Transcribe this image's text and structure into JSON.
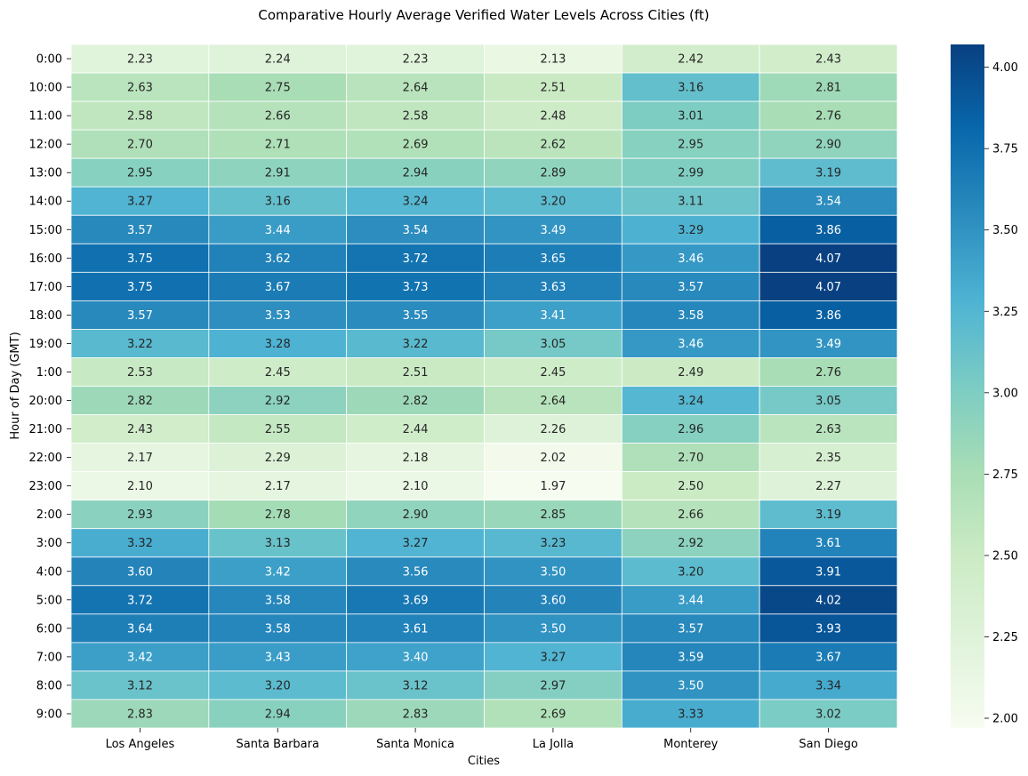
{
  "chart_data": {
    "type": "heatmap",
    "title": "Comparative Hourly Average Verified Water Levels Across Cities (ft)",
    "xlabel": "Cities",
    "ylabel": "Hour of Day (GMT)",
    "columns": [
      "Los Angeles",
      "Santa Barbara",
      "Santa Monica",
      "La Jolla",
      "Monterey",
      "San Diego"
    ],
    "rows": [
      "0:00",
      "10:00",
      "11:00",
      "12:00",
      "13:00",
      "14:00",
      "15:00",
      "16:00",
      "17:00",
      "18:00",
      "19:00",
      "1:00",
      "20:00",
      "21:00",
      "22:00",
      "23:00",
      "2:00",
      "3:00",
      "4:00",
      "5:00",
      "6:00",
      "7:00",
      "8:00",
      "9:00"
    ],
    "values": [
      [
        2.23,
        2.24,
        2.23,
        2.13,
        2.42,
        2.43
      ],
      [
        2.63,
        2.75,
        2.64,
        2.51,
        3.16,
        2.81
      ],
      [
        2.58,
        2.66,
        2.58,
        2.48,
        3.01,
        2.76
      ],
      [
        2.7,
        2.71,
        2.69,
        2.62,
        2.95,
        2.9
      ],
      [
        2.95,
        2.91,
        2.94,
        2.89,
        2.99,
        3.19
      ],
      [
        3.27,
        3.16,
        3.24,
        3.2,
        3.11,
        3.54
      ],
      [
        3.57,
        3.44,
        3.54,
        3.49,
        3.29,
        3.86
      ],
      [
        3.75,
        3.62,
        3.72,
        3.65,
        3.46,
        4.07
      ],
      [
        3.75,
        3.67,
        3.73,
        3.63,
        3.57,
        4.07
      ],
      [
        3.57,
        3.53,
        3.55,
        3.41,
        3.58,
        3.86
      ],
      [
        3.22,
        3.28,
        3.22,
        3.05,
        3.46,
        3.49
      ],
      [
        2.53,
        2.45,
        2.51,
        2.45,
        2.49,
        2.76
      ],
      [
        2.82,
        2.92,
        2.82,
        2.64,
        3.24,
        3.05
      ],
      [
        2.43,
        2.55,
        2.44,
        2.26,
        2.96,
        2.63
      ],
      [
        2.17,
        2.29,
        2.18,
        2.02,
        2.7,
        2.35
      ],
      [
        2.1,
        2.17,
        2.1,
        1.97,
        2.5,
        2.27
      ],
      [
        2.93,
        2.78,
        2.9,
        2.85,
        2.66,
        3.19
      ],
      [
        3.32,
        3.13,
        3.27,
        3.23,
        2.92,
        3.61
      ],
      [
        3.6,
        3.42,
        3.56,
        3.5,
        3.2,
        3.91
      ],
      [
        3.72,
        3.58,
        3.69,
        3.6,
        3.44,
        4.02
      ],
      [
        3.64,
        3.58,
        3.61,
        3.5,
        3.57,
        3.93
      ],
      [
        3.42,
        3.43,
        3.4,
        3.27,
        3.59,
        3.67
      ],
      [
        3.12,
        3.2,
        3.12,
        2.97,
        3.5,
        3.34
      ],
      [
        2.83,
        2.94,
        2.83,
        2.69,
        3.33,
        3.02
      ]
    ],
    "value_format": "0.00",
    "colormap": "GnBu",
    "vmin": 1.97,
    "vmax": 4.07,
    "colorbar_ticks": [
      "2.00",
      "2.25",
      "2.50",
      "2.75",
      "3.00",
      "3.25",
      "3.50",
      "3.75",
      "4.00"
    ],
    "colorbar_tick_values": [
      2.0,
      2.25,
      2.5,
      2.75,
      3.0,
      3.25,
      3.5,
      3.75,
      4.0
    ]
  }
}
